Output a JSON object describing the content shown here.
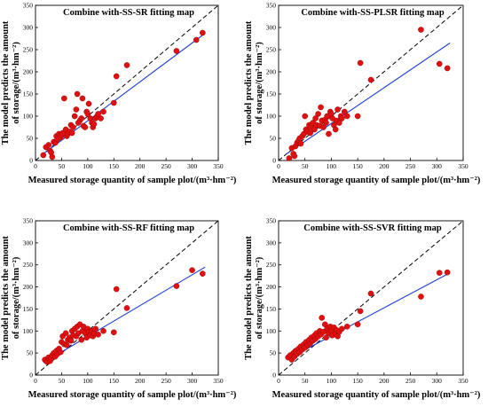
{
  "chart_data": [
    {
      "type": "scatter",
      "title": "Combine with-SS-SR fitting map",
      "xlabel": "Measured storage quantity of sample plot/(m³·hm⁻²)",
      "ylabel_line1": "The model predicts the amount",
      "ylabel_line2": "of storage/(m³·hm⁻²)",
      "xlim": [
        0,
        350
      ],
      "ylim": [
        0,
        350
      ],
      "xticks": [
        "0",
        "50",
        "100",
        "150",
        "200",
        "250",
        "300",
        "350"
      ],
      "yticks": [
        "0",
        "50",
        "100",
        "150",
        "200",
        "250",
        "300",
        "350"
      ],
      "reference_line": "1:1 dashed",
      "fit_line": [
        [
          15,
          15
        ],
        [
          325,
          287
        ]
      ],
      "points": [
        [
          15,
          12
        ],
        [
          20,
          30
        ],
        [
          25,
          35
        ],
        [
          28,
          22
        ],
        [
          30,
          18
        ],
        [
          32,
          8
        ],
        [
          35,
          42
        ],
        [
          38,
          40
        ],
        [
          40,
          55
        ],
        [
          42,
          48
        ],
        [
          45,
          60
        ],
        [
          48,
          52
        ],
        [
          50,
          58
        ],
        [
          52,
          62
        ],
        [
          55,
          140
        ],
        [
          58,
          70
        ],
        [
          60,
          55
        ],
        [
          62,
          60
        ],
        [
          65,
          65
        ],
        [
          68,
          80
        ],
        [
          70,
          62
        ],
        [
          72,
          75
        ],
        [
          75,
          100
        ],
        [
          78,
          115
        ],
        [
          80,
          150
        ],
        [
          82,
          85
        ],
        [
          85,
          90
        ],
        [
          88,
          95
        ],
        [
          90,
          140
        ],
        [
          92,
          78
        ],
        [
          95,
          75
        ],
        [
          98,
          110
        ],
        [
          100,
          105
        ],
        [
          102,
          128
        ],
        [
          105,
          95
        ],
        [
          108,
          85
        ],
        [
          110,
          75
        ],
        [
          112,
          82
        ],
        [
          115,
          95
        ],
        [
          118,
          100
        ],
        [
          120,
          105
        ],
        [
          125,
          95
        ],
        [
          130,
          110
        ],
        [
          150,
          130
        ],
        [
          155,
          190
        ],
        [
          175,
          215
        ],
        [
          270,
          247
        ],
        [
          308,
          272
        ],
        [
          320,
          288
        ]
      ]
    },
    {
      "type": "scatter",
      "title": "Combine with-SS-PLSR fitting map",
      "xlabel": "Measured storage quantity of sample plot/(m³·hm⁻²)",
      "ylabel_line1": "The model predicts the amount",
      "ylabel_line2": "of storage/(m³·hm⁻²)",
      "xlim": [
        0,
        350
      ],
      "ylim": [
        0,
        350
      ],
      "xticks": [
        "0",
        "50",
        "100",
        "150",
        "200",
        "250",
        "300",
        "350"
      ],
      "yticks": [
        "0",
        "50",
        "100",
        "150",
        "200",
        "250",
        "300",
        "350"
      ],
      "reference_line": "1:1 dashed",
      "fit_line": [
        [
          15,
          15
        ],
        [
          325,
          265
        ]
      ],
      "points": [
        [
          20,
          5
        ],
        [
          25,
          28
        ],
        [
          28,
          15
        ],
        [
          30,
          10
        ],
        [
          32,
          32
        ],
        [
          35,
          40
        ],
        [
          38,
          45
        ],
        [
          40,
          50
        ],
        [
          42,
          38
        ],
        [
          45,
          55
        ],
        [
          48,
          60
        ],
        [
          50,
          100
        ],
        [
          52,
          70
        ],
        [
          55,
          65
        ],
        [
          58,
          80
        ],
        [
          60,
          62
        ],
        [
          62,
          75
        ],
        [
          65,
          85
        ],
        [
          68,
          70
        ],
        [
          70,
          95
        ],
        [
          72,
          80
        ],
        [
          75,
          105
        ],
        [
          78,
          78
        ],
        [
          80,
          120
        ],
        [
          82,
          90
        ],
        [
          85,
          75
        ],
        [
          88,
          92
        ],
        [
          90,
          85
        ],
        [
          92,
          100
        ],
        [
          95,
          60
        ],
        [
          98,
          110
        ],
        [
          100,
          105
        ],
        [
          102,
          95
        ],
        [
          105,
          80
        ],
        [
          108,
          70
        ],
        [
          110,
          90
        ],
        [
          112,
          115
        ],
        [
          115,
          85
        ],
        [
          118,
          100
        ],
        [
          120,
          95
        ],
        [
          125,
          110
        ],
        [
          130,
          100
        ],
        [
          150,
          100
        ],
        [
          155,
          220
        ],
        [
          175,
          182
        ],
        [
          270,
          295
        ],
        [
          305,
          218
        ],
        [
          320,
          208
        ]
      ]
    },
    {
      "type": "scatter",
      "title": "Combine with-SS-RF fitting map",
      "xlabel": "Measured storage quantity of sample plot/(m³·hm⁻²)",
      "ylabel_line1": "The model predicts the amount",
      "ylabel_line2": "of storage/(m³·hm⁻²)",
      "xlim": [
        0,
        350
      ],
      "ylim": [
        0,
        350
      ],
      "xticks": [
        "0",
        "50",
        "100",
        "150",
        "200",
        "250",
        "300",
        "350"
      ],
      "yticks": [
        "0",
        "50",
        "100",
        "150",
        "200",
        "250",
        "300",
        "350"
      ],
      "reference_line": "1:1 dashed",
      "fit_line": [
        [
          15,
          28
        ],
        [
          325,
          245
        ]
      ],
      "points": [
        [
          18,
          35
        ],
        [
          22,
          30
        ],
        [
          25,
          40
        ],
        [
          28,
          32
        ],
        [
          30,
          38
        ],
        [
          32,
          45
        ],
        [
          35,
          50
        ],
        [
          38,
          42
        ],
        [
          40,
          55
        ],
        [
          42,
          48
        ],
        [
          45,
          60
        ],
        [
          48,
          52
        ],
        [
          50,
          75
        ],
        [
          52,
          88
        ],
        [
          55,
          70
        ],
        [
          58,
          95
        ],
        [
          60,
          68
        ],
        [
          62,
          80
        ],
        [
          65,
          85
        ],
        [
          68,
          78
        ],
        [
          70,
          100
        ],
        [
          72,
          90
        ],
        [
          75,
          105
        ],
        [
          78,
          88
        ],
        [
          80,
          110
        ],
        [
          82,
          95
        ],
        [
          85,
          115
        ],
        [
          88,
          80
        ],
        [
          90,
          100
        ],
        [
          92,
          110
        ],
        [
          95,
          95
        ],
        [
          98,
          85
        ],
        [
          100,
          105
        ],
        [
          102,
          98
        ],
        [
          105,
          90
        ],
        [
          108,
          100
        ],
        [
          110,
          88
        ],
        [
          112,
          95
        ],
        [
          115,
          105
        ],
        [
          120,
          92
        ],
        [
          130,
          100
        ],
        [
          150,
          97
        ],
        [
          155,
          195
        ],
        [
          175,
          152
        ],
        [
          270,
          202
        ],
        [
          300,
          238
        ],
        [
          320,
          230
        ]
      ]
    },
    {
      "type": "scatter",
      "title": "Combine with-SS-SVR fitting map",
      "xlabel": "Measured storage quantity of sample plot/(m³·hm⁻²)",
      "ylabel_line1": "The model predicts the amount",
      "ylabel_line2": "of storage/(m³·hm⁻²)",
      "xlim": [
        0,
        350
      ],
      "ylim": [
        0,
        350
      ],
      "xticks": [
        "0",
        "50",
        "100",
        "150",
        "200",
        "250",
        "300",
        "350"
      ],
      "yticks": [
        "0",
        "50",
        "100",
        "150",
        "200",
        "250",
        "300",
        "350"
      ],
      "reference_line": "1:1 dashed",
      "fit_line": [
        [
          15,
          35
        ],
        [
          325,
          232
        ]
      ],
      "points": [
        [
          18,
          40
        ],
        [
          22,
          45
        ],
        [
          25,
          35
        ],
        [
          28,
          50
        ],
        [
          30,
          42
        ],
        [
          32,
          55
        ],
        [
          35,
          48
        ],
        [
          38,
          60
        ],
        [
          40,
          52
        ],
        [
          42,
          65
        ],
        [
          45,
          58
        ],
        [
          48,
          70
        ],
        [
          50,
          62
        ],
        [
          52,
          75
        ],
        [
          55,
          68
        ],
        [
          58,
          80
        ],
        [
          60,
          72
        ],
        [
          62,
          85
        ],
        [
          65,
          78
        ],
        [
          68,
          90
        ],
        [
          70,
          82
        ],
        [
          72,
          95
        ],
        [
          75,
          88
        ],
        [
          78,
          100
        ],
        [
          80,
          92
        ],
        [
          82,
          130
        ],
        [
          85,
          98
        ],
        [
          88,
          115
        ],
        [
          90,
          85
        ],
        [
          92,
          105
        ],
        [
          95,
          95
        ],
        [
          98,
          110
        ],
        [
          100,
          100
        ],
        [
          102,
          90
        ],
        [
          105,
          108
        ],
        [
          108,
          95
        ],
        [
          110,
          102
        ],
        [
          112,
          88
        ],
        [
          115,
          98
        ],
        [
          120,
          105
        ],
        [
          130,
          110
        ],
        [
          150,
          115
        ],
        [
          155,
          145
        ],
        [
          175,
          185
        ],
        [
          270,
          178
        ],
        [
          305,
          232
        ],
        [
          320,
          233
        ]
      ]
    }
  ]
}
